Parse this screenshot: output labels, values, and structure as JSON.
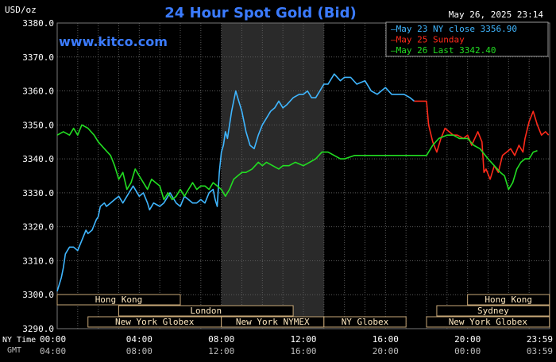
{
  "header": {
    "unit": "USD/oz",
    "title": "24 Hour Spot Gold (Bid)",
    "timestamp": "May 26, 2025 23:14",
    "site": "www.kitco.com"
  },
  "colors": {
    "background": "#000000",
    "plot_bg": "#000000",
    "highlight_bg": "#2a2a2a",
    "grid": "#5a5a5a",
    "axis_text": "#ffffff",
    "title": "#3b7bff",
    "site": "#3b7bff",
    "series_may23": "#3fb6ff",
    "series_may25": "#ff2a1a",
    "series_may26": "#22dd22",
    "session_box_fill": "#000000",
    "session_box_border": "#c8a878",
    "session_text": "#ffe9c0",
    "gmt_text": "#bbbbbb"
  },
  "legend": [
    {
      "text": "May 23 NY close 3356.90",
      "color_key": "series_may23"
    },
    {
      "text": "May 25 Sunday",
      "color_key": "series_may25"
    },
    {
      "text": "May 26 Last 3342.40",
      "color_key": "series_may26"
    }
  ],
  "footer": {
    "ny_label": "NY Time",
    "gmt_label": "GMT",
    "ny_ticks": [
      "00:00",
      "04:00",
      "08:00",
      "12:00",
      "16:00",
      "20:00",
      "23:59"
    ],
    "gmt_ticks": [
      "04:00",
      "08:00",
      "12:00",
      "16:00",
      "20:00",
      "00:00",
      "03:59"
    ]
  },
  "sessions": [
    {
      "label": "Hong Kong",
      "x_start": 0.0,
      "x_end": 6.0,
      "row": 0
    },
    {
      "label": "Hong Kong",
      "x_start": 20.0,
      "x_end": 23.99,
      "row": 0
    },
    {
      "label": "London",
      "x_start": 3.0,
      "x_end": 11.5,
      "row": 1
    },
    {
      "label": "Sydney",
      "x_start": 18.5,
      "x_end": 23.99,
      "row": 1
    },
    {
      "label": "New York Globex",
      "x_start": 1.5,
      "x_end": 8.0,
      "row": 2
    },
    {
      "label": "New York NYMEX",
      "x_start": 8.0,
      "x_end": 13.0,
      "row": 2
    },
    {
      "label": "NY Globex",
      "x_start": 13.0,
      "x_end": 17.0,
      "row": 2
    },
    {
      "label": "New York Globex",
      "x_start": 18.0,
      "x_end": 23.99,
      "row": 2
    }
  ],
  "chart_data": {
    "type": "line",
    "title": "24 Hour Spot Gold (Bid)",
    "ylabel": "USD/oz",
    "xlabel": "NY Time / GMT",
    "xlim": [
      0,
      24
    ],
    "ylim": [
      3290,
      3380
    ],
    "yticks": [
      3290.0,
      3300.0,
      3310.0,
      3320.0,
      3330.0,
      3340.0,
      3350.0,
      3360.0,
      3370.0,
      3380.0
    ],
    "ytick_labels": [
      "3290.0",
      "3300.0",
      "3310.0",
      "3320.0",
      "3330.0",
      "3340.0",
      "3350.0",
      "3360.0",
      "3370.0",
      "3380.0"
    ],
    "xticks": [
      0,
      4,
      8,
      12,
      16,
      20,
      23.98
    ],
    "grid": true,
    "highlight_range_x": [
      8.0,
      13.0
    ],
    "legend_position": "top-right",
    "series": [
      {
        "name": "May 23 NY close 3356.90",
        "color_key": "series_may23",
        "x": [
          0.0,
          0.1,
          0.2,
          0.3,
          0.4,
          0.5,
          0.6,
          0.8,
          1.0,
          1.2,
          1.4,
          1.5,
          1.7,
          1.9,
          2.0,
          2.1,
          2.3,
          2.4,
          2.6,
          2.8,
          3.0,
          3.2,
          3.5,
          3.7,
          4.0,
          4.2,
          4.4,
          4.5,
          4.7,
          5.0,
          5.2,
          5.4,
          5.5,
          5.8,
          6.0,
          6.2,
          6.4,
          6.6,
          6.8,
          7.0,
          7.2,
          7.4,
          7.6,
          7.7,
          7.8,
          7.9,
          8.0,
          8.1,
          8.2,
          8.3,
          8.4,
          8.5,
          8.6,
          8.7,
          8.8,
          9.0,
          9.2,
          9.4,
          9.6,
          9.8,
          10.0,
          10.2,
          10.4,
          10.6,
          10.8,
          11.0,
          11.2,
          11.5,
          11.8,
          12.0,
          12.2,
          12.4,
          12.6,
          12.8,
          13.0,
          13.2,
          13.5,
          13.8,
          14.0,
          14.3,
          14.6,
          15.0,
          15.3,
          15.6,
          16.0,
          16.3,
          16.6,
          16.9,
          17.2,
          17.4
        ],
        "y": [
          3301.0,
          3303.0,
          3305.0,
          3308.0,
          3312.0,
          3313.0,
          3314.0,
          3314.0,
          3313.0,
          3316.0,
          3319.0,
          3318.0,
          3319.0,
          3322.0,
          3323.0,
          3326.0,
          3327.0,
          3326.0,
          3327.0,
          3328.0,
          3329.0,
          3327.0,
          3330.0,
          3332.0,
          3329.0,
          3330.0,
          3327.0,
          3325.0,
          3327.0,
          3326.0,
          3327.0,
          3329.0,
          3330.0,
          3327.0,
          3326.0,
          3329.0,
          3328.0,
          3327.0,
          3327.0,
          3328.0,
          3327.0,
          3330.0,
          3331.0,
          3328.0,
          3326.0,
          3336.0,
          3342.0,
          3344.0,
          3348.0,
          3346.0,
          3350.0,
          3354.0,
          3357.0,
          3360.0,
          3358.0,
          3354.0,
          3348.0,
          3344.0,
          3343.0,
          3347.0,
          3350.0,
          3352.0,
          3354.0,
          3355.0,
          3357.0,
          3355.0,
          3356.0,
          3358.0,
          3359.0,
          3359.0,
          3360.0,
          3358.0,
          3358.0,
          3360.0,
          3362.0,
          3362.0,
          3365.0,
          3363.0,
          3364.0,
          3364.0,
          3362.0,
          3363.0,
          3360.0,
          3359.0,
          3361.0,
          3359.0,
          3359.0,
          3359.0,
          3358.0,
          3357.0
        ]
      },
      {
        "name": "May 25 Sunday",
        "color_key": "series_may25",
        "x": [
          17.4,
          17.8,
          18.0,
          18.1,
          18.3,
          18.5,
          18.7,
          18.9,
          19.1,
          19.3,
          19.5,
          19.8,
          20.0,
          20.2,
          20.5,
          20.7,
          20.8,
          20.9,
          21.1,
          21.3,
          21.5,
          21.7,
          21.9,
          22.1,
          22.3,
          22.5,
          22.7,
          22.8,
          23.0,
          23.2,
          23.4,
          23.6,
          23.8,
          23.95
        ],
        "y": [
          3357.0,
          3357.0,
          3357.0,
          3350.0,
          3345.0,
          3342.0,
          3346.0,
          3349.0,
          3348.0,
          3347.0,
          3347.0,
          3346.0,
          3347.0,
          3344.0,
          3348.0,
          3345.0,
          3336.0,
          3337.0,
          3334.0,
          3338.0,
          3336.0,
          3341.0,
          3342.0,
          3343.0,
          3341.0,
          3344.0,
          3342.0,
          3346.0,
          3351.0,
          3354.0,
          3350.0,
          3347.0,
          3348.0,
          3347.0
        ]
      },
      {
        "name": "May 26 Last 3342.40",
        "color_key": "series_may26",
        "x": [
          0.0,
          0.3,
          0.6,
          0.8,
          1.0,
          1.2,
          1.5,
          1.8,
          2.0,
          2.3,
          2.6,
          2.8,
          3.0,
          3.2,
          3.4,
          3.6,
          3.8,
          4.0,
          4.2,
          4.4,
          4.6,
          4.8,
          5.0,
          5.2,
          5.4,
          5.6,
          5.8,
          6.0,
          6.2,
          6.4,
          6.6,
          6.8,
          7.0,
          7.2,
          7.4,
          7.6,
          7.8,
          8.0,
          8.2,
          8.4,
          8.6,
          8.8,
          9.0,
          9.2,
          9.5,
          9.8,
          10.0,
          10.2,
          10.5,
          10.8,
          11.0,
          11.3,
          11.6,
          12.0,
          12.3,
          12.6,
          12.9,
          13.2,
          13.5,
          13.8,
          14.0,
          14.5,
          15.0,
          15.5,
          16.0,
          16.5,
          17.0,
          17.5,
          18.0,
          18.3,
          18.6,
          19.0,
          19.3,
          19.6,
          20.0,
          20.3,
          20.6,
          21.0,
          21.3,
          21.6,
          21.8,
          22.0,
          22.2,
          22.4,
          22.6,
          22.8,
          23.0,
          23.2,
          23.4
        ],
        "y": [
          3347.0,
          3348.0,
          3347.0,
          3349.0,
          3347.0,
          3350.0,
          3349.0,
          3347.0,
          3345.0,
          3343.0,
          3341.0,
          3338.0,
          3334.0,
          3336.0,
          3331.0,
          3333.0,
          3337.0,
          3335.0,
          3333.0,
          3331.0,
          3334.0,
          3333.0,
          3332.0,
          3328.0,
          3330.0,
          3328.0,
          3329.0,
          3331.0,
          3329.0,
          3331.0,
          3333.0,
          3331.0,
          3332.0,
          3332.0,
          3331.0,
          3333.0,
          3332.0,
          3331.0,
          3329.0,
          3331.0,
          3334.0,
          3335.0,
          3336.0,
          3336.0,
          3337.0,
          3339.0,
          3338.0,
          3339.0,
          3338.0,
          3337.0,
          3338.0,
          3338.0,
          3339.0,
          3338.0,
          3339.0,
          3340.0,
          3342.0,
          3342.0,
          3341.0,
          3340.0,
          3340.0,
          3341.0,
          3341.0,
          3341.0,
          3341.0,
          3341.0,
          3341.0,
          3341.0,
          3341.0,
          3344.0,
          3346.0,
          3347.0,
          3347.0,
          3346.0,
          3346.0,
          3344.0,
          3343.0,
          3340.0,
          3338.0,
          3336.0,
          3335.0,
          3331.0,
          3333.0,
          3337.0,
          3339.0,
          3340.0,
          3340.0,
          3342.0,
          3342.4
        ]
      }
    ]
  }
}
